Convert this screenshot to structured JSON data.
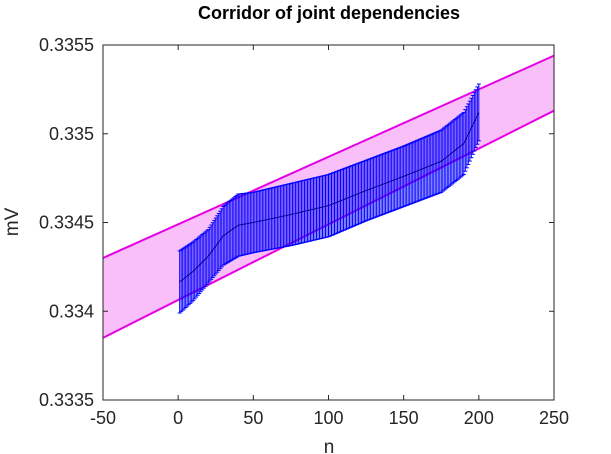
{
  "chart_data": {
    "type": "line",
    "title": "Corridor of joint dependencies",
    "xlabel": "n",
    "ylabel": "mV",
    "xlim": [
      -50,
      250
    ],
    "ylim": [
      0.3335,
      0.3355
    ],
    "xticks": [
      -50,
      0,
      50,
      100,
      150,
      200,
      250
    ],
    "xtick_labels": [
      "-50",
      "0",
      "50",
      "100",
      "150",
      "200",
      "250"
    ],
    "yticks": [
      0.3335,
      0.334,
      0.3345,
      0.335,
      0.3355
    ],
    "ytick_labels": [
      "0.3335",
      "0.334",
      "0.3345",
      "0.335",
      "0.3355"
    ],
    "grid": false,
    "colors": {
      "corridor_line": "#e600e6",
      "corridor_fill": "#f9bff9",
      "corridor_edge": "#000000",
      "interval_bars": "#0000ff",
      "interval_mid": "#00008b",
      "axes": "#262626"
    },
    "corridor": {
      "x": [
        -50,
        250
      ],
      "upper": [
        0.3343,
        0.33544
      ],
      "lower": [
        0.33385,
        0.33513
      ]
    },
    "intervals": {
      "x_start": 1,
      "x_end": 200,
      "step": 1,
      "knots_x": [
        1,
        10,
        20,
        30,
        40,
        50,
        75,
        100,
        125,
        150,
        175,
        190,
        200
      ],
      "knots_upper": [
        0.33434,
        0.33439,
        0.33446,
        0.33459,
        0.33466,
        0.33467,
        0.33472,
        0.33477,
        0.33485,
        0.33493,
        0.33502,
        0.33512,
        0.33528
      ],
      "knots_lower": [
        0.33399,
        0.33406,
        0.33416,
        0.33426,
        0.33431,
        0.33433,
        0.33437,
        0.33442,
        0.33451,
        0.33459,
        0.33467,
        0.33477,
        0.33496
      ]
    }
  }
}
